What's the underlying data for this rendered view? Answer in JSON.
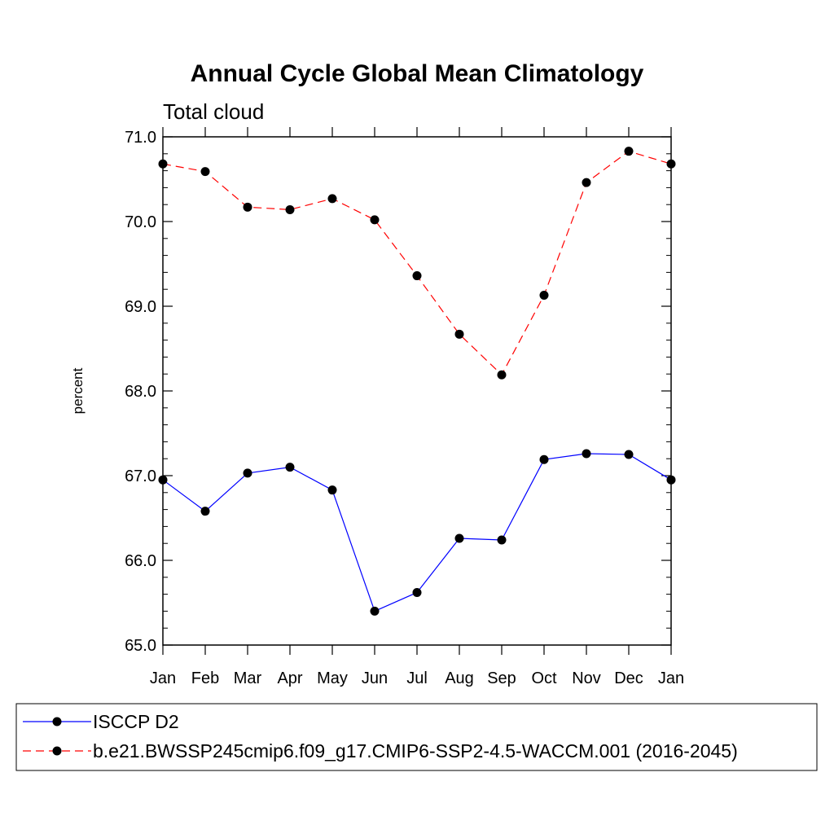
{
  "chart_data": {
    "type": "line",
    "title": "Annual Cycle Global Mean Climatology",
    "subtitle": "Total cloud",
    "xlabel": "",
    "ylabel": "percent",
    "ylim": [
      65.0,
      71.0
    ],
    "y_tick_labels": [
      "65.0",
      "66.0",
      "67.0",
      "68.0",
      "69.0",
      "70.0",
      "71.0"
    ],
    "categories": [
      "Jan",
      "Feb",
      "Mar",
      "Apr",
      "May",
      "Jun",
      "Jul",
      "Aug",
      "Sep",
      "Oct",
      "Nov",
      "Dec",
      "Jan"
    ],
    "grid": false,
    "legend_position": "bottom",
    "series": [
      {
        "name": "ISCCP D2",
        "color": "#0000ff",
        "dash": "solid",
        "marker": "filled-circle",
        "values": [
          66.95,
          66.58,
          67.03,
          67.1,
          66.83,
          65.4,
          65.62,
          66.26,
          66.24,
          67.19,
          67.26,
          67.25,
          66.95
        ]
      },
      {
        "name": "b.e21.BWSSP245cmip6.f09_g17.CMIP6-SSP2-4.5-WACCM.001 (2016-2045)",
        "color": "#ff0000",
        "dash": "dashed",
        "marker": "filled-circle",
        "values": [
          70.68,
          70.59,
          70.17,
          70.14,
          70.27,
          70.02,
          69.36,
          68.67,
          68.19,
          69.13,
          70.46,
          70.83,
          70.68
        ]
      }
    ]
  }
}
